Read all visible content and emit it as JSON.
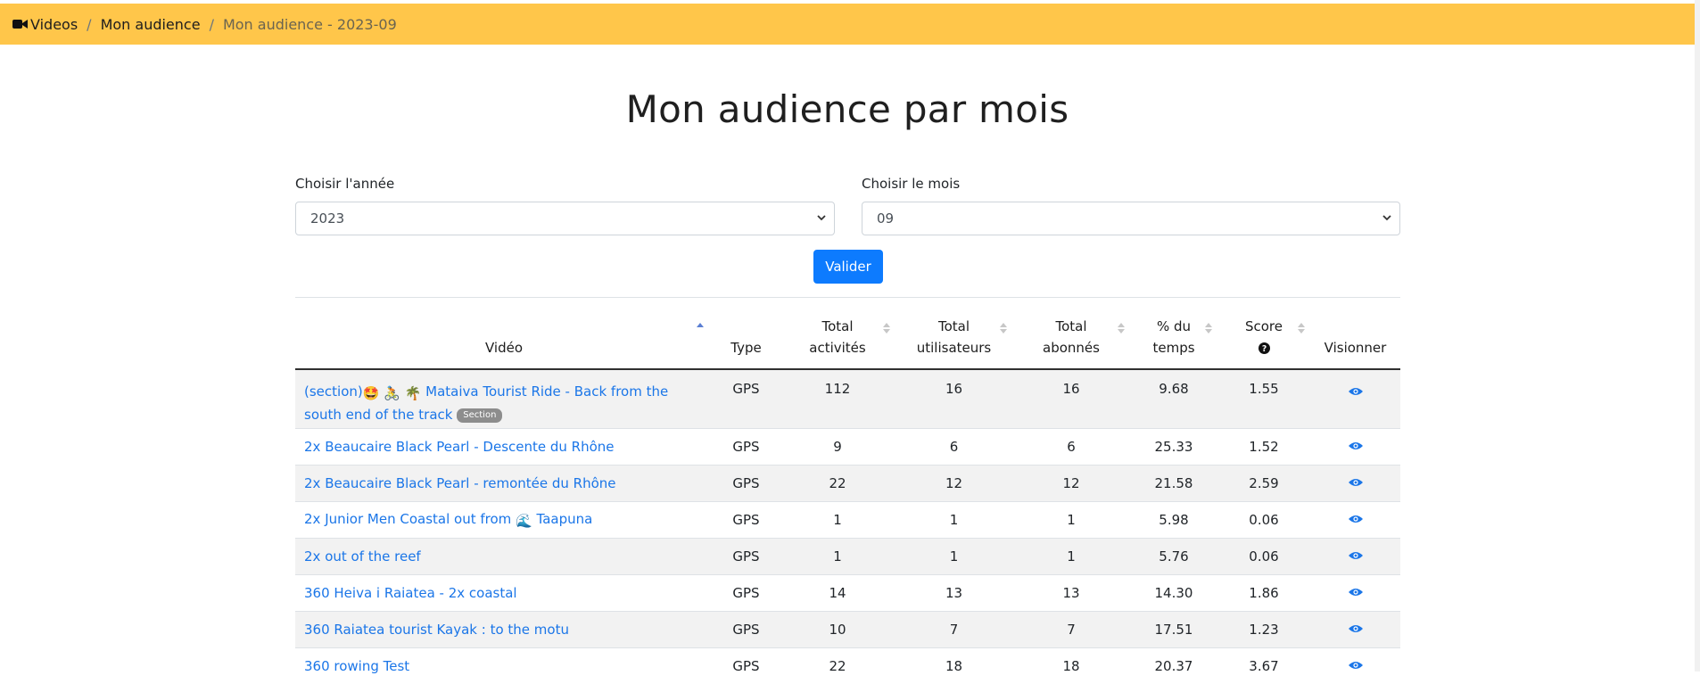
{
  "breadcrumb": {
    "items": [
      {
        "label": "Videos",
        "icon": "video-camera-icon"
      },
      {
        "label": "Mon audience"
      },
      {
        "label": "Mon audience - 2023-09"
      }
    ],
    "separator": "/"
  },
  "page": {
    "title": "Mon audience par mois"
  },
  "filters": {
    "year": {
      "label": "Choisir l'année",
      "value": "2023"
    },
    "month": {
      "label": "Choisir le mois",
      "value": "09"
    },
    "submit_label": "Valider"
  },
  "colors": {
    "topbar": "#ffc64a",
    "link": "#1b76e8",
    "button": "#0d7bfe",
    "stripe": "#f2f2f2",
    "badge": "#8d8d8d"
  },
  "table": {
    "headers": {
      "video": "Vidéo",
      "type": "Type",
      "activites_1": "Total",
      "activites_2": "activités",
      "utilisateurs_1": "Total",
      "utilisateurs_2": "utilisateurs",
      "abonnes_1": "Total",
      "abonnes_2": "abonnés",
      "temps_1": "% du",
      "temps_2": "temps",
      "score_1": "Score",
      "score_icon": "question-circle-icon",
      "visionner": "Visionner"
    },
    "rows": [
      {
        "prefix": "(section)",
        "video": "Mataiva Tourist Ride - Back from the",
        "video_line2": "south end of the track",
        "badge": "Section",
        "type": "GPS",
        "activites": "112",
        "utilisateurs": "16",
        "abonnes": "16",
        "temps": "9.68",
        "score": "1.55"
      },
      {
        "video": "2x Beaucaire Black Pearl - Descente du Rhône",
        "type": "GPS",
        "activites": "9",
        "utilisateurs": "6",
        "abonnes": "6",
        "temps": "25.33",
        "score": "1.52"
      },
      {
        "video": "2x Beaucaire Black Pearl - remontée du Rhône",
        "type": "GPS",
        "activites": "22",
        "utilisateurs": "12",
        "abonnes": "12",
        "temps": "21.58",
        "score": "2.59"
      },
      {
        "video": "2x Junior Men Coastal out from",
        "video_suffix": "Taapuna",
        "type": "GPS",
        "activites": "1",
        "utilisateurs": "1",
        "abonnes": "1",
        "temps": "5.98",
        "score": "0.06"
      },
      {
        "video": "2x out of the reef",
        "type": "GPS",
        "activites": "1",
        "utilisateurs": "1",
        "abonnes": "1",
        "temps": "5.76",
        "score": "0.06"
      },
      {
        "video": "360 Heiva i Raiatea - 2x coastal",
        "type": "GPS",
        "activites": "14",
        "utilisateurs": "13",
        "abonnes": "13",
        "temps": "14.30",
        "score": "1.86"
      },
      {
        "video": "360 Raiatea tourist Kayak : to the motu",
        "type": "GPS",
        "activites": "10",
        "utilisateurs": "7",
        "abonnes": "7",
        "temps": "17.51",
        "score": "1.23"
      },
      {
        "video": "360 rowing Test",
        "type": "GPS",
        "activites": "22",
        "utilisateurs": "18",
        "abonnes": "18",
        "temps": "20.37",
        "score": "3.67"
      }
    ]
  }
}
